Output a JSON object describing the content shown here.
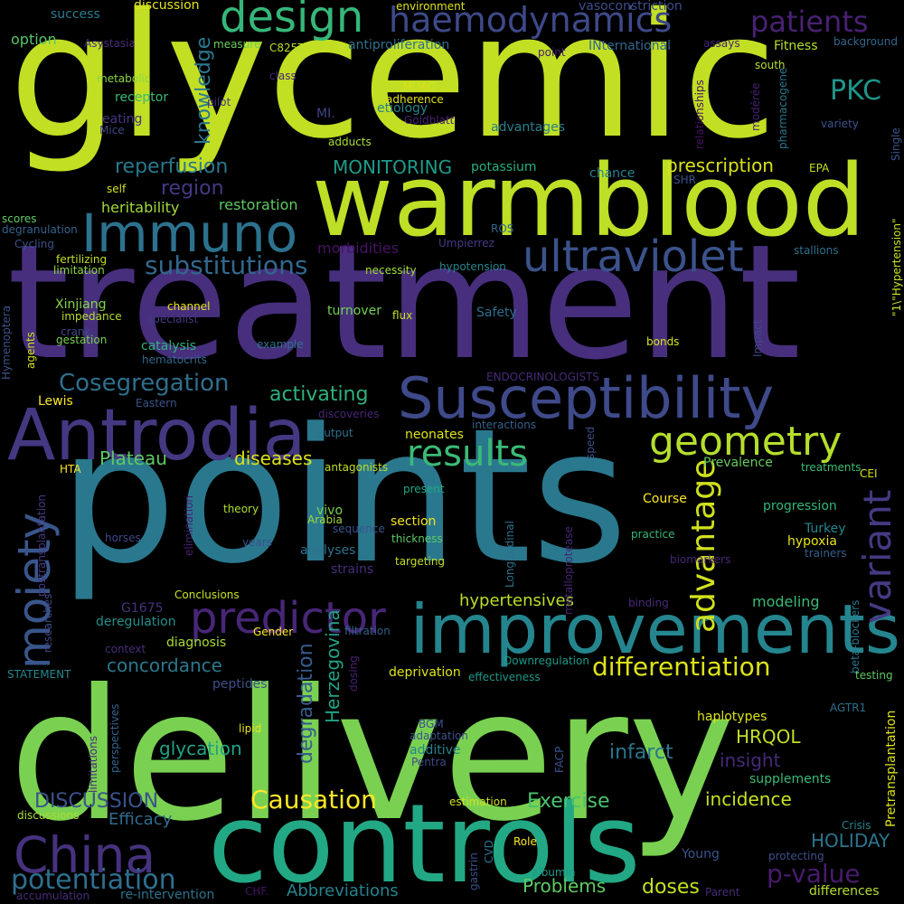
{
  "canvas": {
    "background": "#000000"
  },
  "words": [
    {
      "text": "glycemic",
      "color": "#c2df23"
    },
    {
      "text": "treatment",
      "color": "#472f7d"
    },
    {
      "text": "points",
      "color": "#2a788e"
    },
    {
      "text": "delivery",
      "color": "#7ad151"
    },
    {
      "text": "controls",
      "color": "#22a884"
    },
    {
      "text": "warmblood",
      "color": "#bddf26"
    },
    {
      "text": "improvements",
      "color": "#25858e"
    },
    {
      "text": "Antrodia",
      "color": "#453882"
    },
    {
      "text": "Susceptibility",
      "color": "#3e4a89"
    },
    {
      "text": "Immuno",
      "color": "#2c728e"
    },
    {
      "text": "ultraviolet",
      "color": "#3b528b"
    },
    {
      "text": "design",
      "color": "#35b779"
    },
    {
      "text": "haemodynamics",
      "color": "#3e4989"
    },
    {
      "text": "patients",
      "color": "#482173"
    },
    {
      "text": "moiety",
      "color": "#39568c"
    },
    {
      "text": "predictor",
      "color": "#482677"
    },
    {
      "text": "geometry",
      "color": "#b5de2b"
    },
    {
      "text": "results",
      "color": "#3aba76"
    },
    {
      "text": "variant",
      "color": "#443a83"
    },
    {
      "text": "China",
      "color": "#46327e"
    },
    {
      "text": "controls",
      "color": "#22a884"
    },
    {
      "text": "substitutions",
      "color": "#31688e"
    },
    {
      "text": "advantage",
      "color": "#d0e11c"
    },
    {
      "text": "PKC",
      "color": "#1f958b"
    },
    {
      "text": "knowledge",
      "color": "#2a788e"
    },
    {
      "text": "differentiation",
      "color": "#dde318"
    },
    {
      "text": "potentiation",
      "color": "#2d708e"
    },
    {
      "text": "p-value",
      "color": "#481b6d"
    },
    {
      "text": "Causation",
      "color": "#fde725"
    },
    {
      "text": "Cosegregation",
      "color": "#2e6f8e"
    },
    {
      "text": "activating",
      "color": "#2db27d"
    },
    {
      "text": "reperfusion",
      "color": "#2a788e"
    },
    {
      "text": "region",
      "color": "#443983"
    },
    {
      "text": "prescription",
      "color": "#dae319"
    },
    {
      "text": "MONITORING",
      "color": "#1e9b8a"
    },
    {
      "text": "DISCUSSION",
      "color": "#3b528b"
    },
    {
      "text": "Exercise",
      "color": "#4ac16d"
    },
    {
      "text": "incidence",
      "color": "#c8e020"
    },
    {
      "text": "HOLIDAY",
      "color": "#2b758e"
    },
    {
      "text": "concordance",
      "color": "#2a788e"
    },
    {
      "text": "glycation",
      "color": "#20a486"
    },
    {
      "text": "infarct",
      "color": "#2a768e"
    },
    {
      "text": "insight",
      "color": "#482979"
    },
    {
      "text": "HRQOL",
      "color": "#c0df25"
    },
    {
      "text": "Problems",
      "color": "#5ec962"
    },
    {
      "text": "doses",
      "color": "#c5e021"
    },
    {
      "text": "Abbreviations",
      "color": "#26828e"
    },
    {
      "text": "Plateau",
      "color": "#5ec962"
    },
    {
      "text": "diseases",
      "color": "#dde318"
    },
    {
      "text": "hypertensives",
      "color": "#bade28"
    },
    {
      "text": "degradation",
      "color": "#365c8d"
    },
    {
      "text": "Herzegovina",
      "color": "#20a386"
    },
    {
      "text": "morbidities",
      "color": "#471365"
    },
    {
      "text": "heritability",
      "color": "#a0da39"
    },
    {
      "text": "restoration",
      "color": "#5ec962"
    },
    {
      "text": "Efficacy",
      "color": "#2f6c8e"
    },
    {
      "text": "modeling",
      "color": "#3aba76"
    },
    {
      "text": "Prevalence",
      "color": "#65cb5e"
    },
    {
      "text": "option",
      "color": "#54c568"
    },
    {
      "text": "success",
      "color": "#287c8e"
    },
    {
      "text": "discussion",
      "color": "#e2e418"
    },
    {
      "text": "Asystasia",
      "color": "#472c7a"
    },
    {
      "text": "environment",
      "color": "#dde318"
    },
    {
      "text": "vasoconstriction",
      "color": "#3d4d8a"
    },
    {
      "text": "antiproliferation",
      "color": "#2c728e"
    },
    {
      "text": "INternational",
      "color": "#31688e"
    },
    {
      "text": "measure",
      "color": "#6ccd5a"
    },
    {
      "text": "C825T",
      "color": "#b8de29"
    },
    {
      "text": "assays",
      "color": "#482576"
    },
    {
      "text": "Fitness",
      "color": "#b5de2b"
    },
    {
      "text": "background",
      "color": "#31688e"
    },
    {
      "text": "metabolic",
      "color": "#8bd646"
    },
    {
      "text": "receptor",
      "color": "#3aba76"
    },
    {
      "text": "class",
      "color": "#482878"
    },
    {
      "text": "pilot",
      "color": "#443b84"
    },
    {
      "text": "MUAC",
      "color": "#d8e219"
    },
    {
      "text": "adherence",
      "color": "#e2e418"
    },
    {
      "text": "etiology",
      "color": "#26828e"
    },
    {
      "text": "Goldblatt",
      "color": "#482475"
    },
    {
      "text": "relationships",
      "color": "#471164"
    },
    {
      "text": "modérée",
      "color": "#482173"
    },
    {
      "text": "pharmacogene",
      "color": "#2a768e"
    },
    {
      "text": "south",
      "color": "#b2dd2d"
    },
    {
      "text": "variety",
      "color": "#3b528b"
    },
    {
      "text": "Single",
      "color": "#3a548c"
    },
    {
      "text": "eating",
      "color": "#453781"
    },
    {
      "text": "Mice",
      "color": "#3f4889"
    },
    {
      "text": "MI.",
      "color": "#414487"
    },
    {
      "text": "adducts",
      "color": "#aadc32"
    },
    {
      "text": "advantages",
      "color": "#27808e"
    },
    {
      "text": "point",
      "color": "#482071"
    },
    {
      "text": "potassium",
      "color": "#29af7f"
    },
    {
      "text": "chance",
      "color": "#26828e"
    },
    {
      "text": "EPA",
      "color": "#c2df23"
    },
    {
      "text": "SHR",
      "color": "#3b528b"
    },
    {
      "text": "self",
      "color": "#d5e21a"
    },
    {
      "text": "scores",
      "color": "#60ca60"
    },
    {
      "text": "degranulation",
      "color": "#33638d"
    },
    {
      "text": "Cycling",
      "color": "#3b528b"
    },
    {
      "text": "fertilizing",
      "color": "#c2df23"
    },
    {
      "text": "limitation",
      "color": "#90d743"
    },
    {
      "text": "ROS",
      "color": "#31678e"
    },
    {
      "text": "Umpierrez",
      "color": "#443a83"
    },
    {
      "text": "hypotension",
      "color": "#25848e"
    },
    {
      "text": "necessity",
      "color": "#a2da37"
    },
    {
      "text": "stallions",
      "color": "#2d708e"
    },
    {
      "text": "\"1\\\"Hypertension\"",
      "color": "#c8e020"
    },
    {
      "text": "Hymenoptera",
      "color": "#3b528b"
    },
    {
      "text": "Xinjiang",
      "color": "#84d44b"
    },
    {
      "text": "impedance",
      "color": "#b5de2b"
    },
    {
      "text": "specialist",
      "color": "#443983"
    },
    {
      "text": "channel",
      "color": "#e5e419"
    },
    {
      "text": "turnover",
      "color": "#75d054"
    },
    {
      "text": "flux",
      "color": "#c8e020"
    },
    {
      "text": "Safety",
      "color": "#2e6e8e"
    },
    {
      "text": "crank",
      "color": "#404688"
    },
    {
      "text": "gestation",
      "color": "#7ad151"
    },
    {
      "text": "agents",
      "color": "#d2e21b"
    },
    {
      "text": "example",
      "color": "#2e6f8e"
    },
    {
      "text": "catalysis",
      "color": "#2db27d"
    },
    {
      "text": "bonds",
      "color": "#d8e219"
    },
    {
      "text": "Impact",
      "color": "#3f4788"
    },
    {
      "text": "hematocrits",
      "color": "#31688e"
    },
    {
      "text": "ENDOCRINOLOGISTS",
      "color": "#472a7a"
    },
    {
      "text": "Lewis",
      "color": "#fde725"
    },
    {
      "text": "Eastern",
      "color": "#3a548c"
    },
    {
      "text": "discoveries",
      "color": "#482576"
    },
    {
      "text": "interactions",
      "color": "#34618d"
    },
    {
      "text": "output",
      "color": "#2d708e"
    },
    {
      "text": "neonates",
      "color": "#dde318"
    },
    {
      "text": "antagonists",
      "color": "#c0df25"
    },
    {
      "text": "speed",
      "color": "#3c4f8a"
    },
    {
      "text": "HTA",
      "color": "#fde725"
    },
    {
      "text": "treatments",
      "color": "#3dbc74"
    },
    {
      "text": "CEI",
      "color": "#d8e219"
    },
    {
      "text": "present",
      "color": "#22a884"
    },
    {
      "text": "theory",
      "color": "#addc30"
    },
    {
      "text": "vivo",
      "color": "#7ad151"
    },
    {
      "text": "Arabia",
      "color": "#a0da39"
    },
    {
      "text": "sequence",
      "color": "#3b528b"
    },
    {
      "text": "section",
      "color": "#f1e51d"
    },
    {
      "text": "metalloprotease",
      "color": "#482677"
    },
    {
      "text": "Longitudinal",
      "color": "#2c718e"
    },
    {
      "text": "Course",
      "color": "#fde725"
    },
    {
      "text": "progression",
      "color": "#32b67a"
    },
    {
      "text": "Turkey",
      "color": "#24878e"
    },
    {
      "text": "hypoxia",
      "color": "#e5e419"
    },
    {
      "text": "postransplantation",
      "color": "#443983"
    },
    {
      "text": "horses",
      "color": "#404588"
    },
    {
      "text": "elimination",
      "color": "#482071"
    },
    {
      "text": "years",
      "color": "#3b528b"
    },
    {
      "text": "analyses",
      "color": "#2c718e"
    },
    {
      "text": "thickness",
      "color": "#5ec962"
    },
    {
      "text": "practice",
      "color": "#35b779"
    },
    {
      "text": "trainers",
      "color": "#34608d"
    },
    {
      "text": "strains",
      "color": "#472d7b"
    },
    {
      "text": "targeting",
      "color": "#c2df23"
    },
    {
      "text": "biomarkers",
      "color": "#482677"
    },
    {
      "text": "researches",
      "color": "#3e4989"
    },
    {
      "text": "G1675",
      "color": "#46327e"
    },
    {
      "text": "Conclusions",
      "color": "#cae11f"
    },
    {
      "text": "binding",
      "color": "#482979"
    },
    {
      "text": "deregulation",
      "color": "#21918c"
    },
    {
      "text": "Gender",
      "color": "#fde725"
    },
    {
      "text": "filtration",
      "color": "#35608d"
    },
    {
      "text": "diagnosis",
      "color": "#a8db34"
    },
    {
      "text": "context",
      "color": "#472d7b"
    },
    {
      "text": "beta-blockers",
      "color": "#2a778e"
    },
    {
      "text": "Downregulation",
      "color": "#1e9b8a"
    },
    {
      "text": "deprivation",
      "color": "#dde318"
    },
    {
      "text": "dosing",
      "color": "#482071"
    },
    {
      "text": "STATEMENT",
      "color": "#24878e"
    },
    {
      "text": "peptides",
      "color": "#3c4f8a"
    },
    {
      "text": "effectiveness",
      "color": "#1f988b"
    },
    {
      "text": "testing",
      "color": "#5ec962"
    },
    {
      "text": "AGTR1",
      "color": "#2d708e"
    },
    {
      "text": "haplotypes",
      "color": "#dde318"
    },
    {
      "text": "BGM",
      "color": "#3b528b"
    },
    {
      "text": "lipid",
      "color": "#e5e419"
    },
    {
      "text": "adaptation",
      "color": "#3b528b"
    },
    {
      "text": "perspectives",
      "color": "#33638d"
    },
    {
      "text": "limitations",
      "color": "#482878"
    },
    {
      "text": "additive",
      "color": "#25838e"
    },
    {
      "text": "FACP",
      "color": "#3b528b"
    },
    {
      "text": "Pentra",
      "color": "#3f4889"
    },
    {
      "text": "supplements",
      "color": "#3aba76"
    },
    {
      "text": "Pretransplantation",
      "color": "#dde318"
    },
    {
      "text": "estimation",
      "color": "#d2e21b"
    },
    {
      "text": "discussions",
      "color": "#addc30"
    },
    {
      "text": "CVD",
      "color": "#2e6f8e"
    },
    {
      "text": "Role",
      "color": "#fde725"
    },
    {
      "text": "gastrin",
      "color": "#3b528b"
    },
    {
      "text": "Young",
      "color": "#3a548c"
    },
    {
      "text": "Crisis",
      "color": "#26828e"
    },
    {
      "text": "protecting",
      "color": "#3c4f8a"
    },
    {
      "text": "albumin",
      "color": "#1f998a"
    },
    {
      "text": "Parent",
      "color": "#472a7a"
    },
    {
      "text": "differences",
      "color": "#b5de2b"
    },
    {
      "text": "accumulation",
      "color": "#472c7a"
    },
    {
      "text": "re-intervention",
      "color": "#2c738e"
    },
    {
      "text": "CHF.",
      "color": "#471365"
    }
  ]
}
